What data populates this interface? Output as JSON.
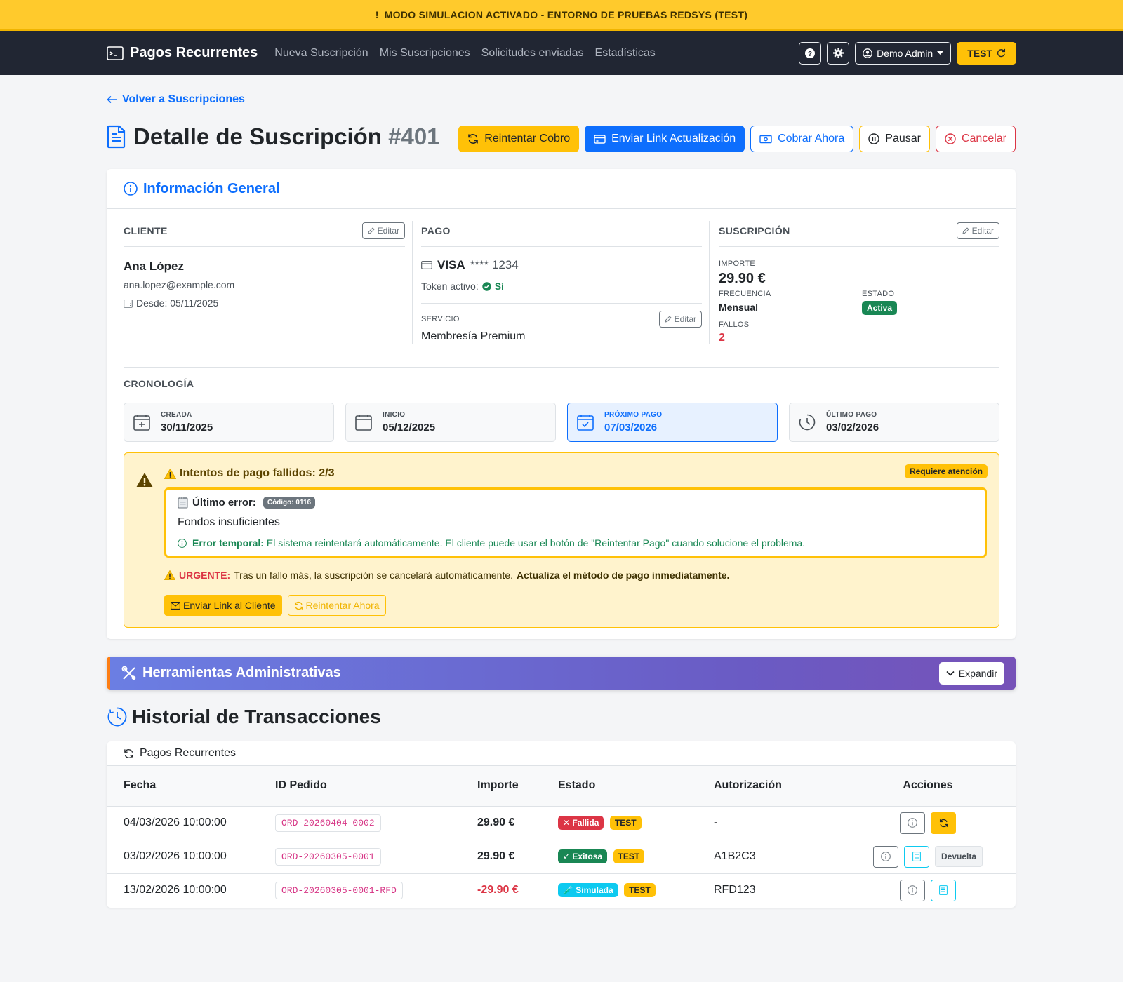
{
  "banner": {
    "icon": "!",
    "text": "MODO SIMULACION ACTIVADO - ENTORNO DE PRUEBAS REDSYS (TEST)"
  },
  "navbar": {
    "brand": "Pagos Recurrentes",
    "links": [
      "Nueva Suscripción",
      "Mis Suscripciones",
      "Solicitudes enviadas",
      "Estadísticas"
    ],
    "user": "Demo Admin",
    "mode": "TEST"
  },
  "page": {
    "back_link": "Volver a Suscripciones",
    "title": "Detalle de Suscripción",
    "title_id": "#401",
    "actions": {
      "retry": "Reintentar Cobro",
      "send_link": "Enviar Link Actualización",
      "charge_now": "Cobrar Ahora",
      "pause": "Pausar",
      "cancel": "Cancelar"
    }
  },
  "info": {
    "header": "Información General",
    "edit_label": "Editar",
    "client": {
      "title": "CLIENTE",
      "name": "Ana López",
      "email": "ana.lopez@example.com",
      "since": "Desde: 05/11/2025"
    },
    "payment": {
      "title": "PAGO",
      "card_brand": "VISA",
      "card_mask": "**** 1234",
      "token_label": "Token activo:",
      "token_value": "Sí",
      "service_label": "SERVICIO",
      "service_value": "Membresía Premium"
    },
    "subscription": {
      "title": "SUSCRIPCIÓN",
      "amount_label": "IMPORTE",
      "amount": "29.90 €",
      "frequency_label": "FRECUENCIA",
      "frequency": "Mensual",
      "status_label": "ESTADO",
      "status": "Activa",
      "failures_label": "FALLOS",
      "failures": "2"
    }
  },
  "timeline": {
    "title": "CRONOLOGÍA",
    "items": [
      {
        "label": "CREADA",
        "value": "30/11/2025"
      },
      {
        "label": "INICIO",
        "value": "05/12/2025"
      },
      {
        "label": "PRÓXIMO PAGO",
        "value": "07/03/2026"
      },
      {
        "label": "ÚLTIMO PAGO",
        "value": "03/02/2026"
      }
    ]
  },
  "alert": {
    "title": "Intentos de pago fallidos: 2/3",
    "badge": "Requiere atención",
    "last_error_label": "Último error:",
    "error_code": "Código: 0116",
    "error_message": "Fondos insuficientes",
    "temp_label": "Error temporal:",
    "temp_text": "El sistema reintentará automáticamente. El cliente puede usar el botón de \"Reintentar Pago\" cuando solucione el problema.",
    "urgent_label": "URGENTE:",
    "urgent_text": "Tras un fallo más, la suscripción se cancelará automáticamente.",
    "urgent_bold": "Actualiza el método de pago inmediatamente.",
    "send_link_btn": "Enviar Link al Cliente",
    "retry_now_btn": "Reintentar Ahora"
  },
  "admin": {
    "title": "Herramientas Administrativas",
    "expand": "Expandir"
  },
  "history": {
    "title": "Historial de Transacciones",
    "subtitle": "Pagos Recurrentes",
    "columns": [
      "Fecha",
      "ID Pedido",
      "Importe",
      "Estado",
      "Autorización",
      "Acciones"
    ],
    "rows": [
      {
        "date": "04/03/2026 10:00:00",
        "order": "ORD-20260404-0002",
        "amount": "29.90 €",
        "status": "✕ Fallida",
        "env": "TEST",
        "auth": "-"
      },
      {
        "date": "03/02/2026 10:00:00",
        "order": "ORD-20260305-0001",
        "amount": "29.90 €",
        "status": "✓ Exitosa",
        "env": "TEST",
        "auth": "A1B2C3",
        "extra": "Devuelta"
      },
      {
        "date": "13/02/2026 10:00:00",
        "order": "ORD-20260305-0001-RFD",
        "amount": "-29.90 €",
        "status": "🧪 Simulada",
        "env": "TEST",
        "auth": "RFD123"
      }
    ]
  },
  "colors": {
    "primary": "#0d6efd",
    "warning": "#ffc107",
    "danger": "#dc3545",
    "success": "#198754",
    "info": "#0dcaf0",
    "navbar": "#212633"
  }
}
